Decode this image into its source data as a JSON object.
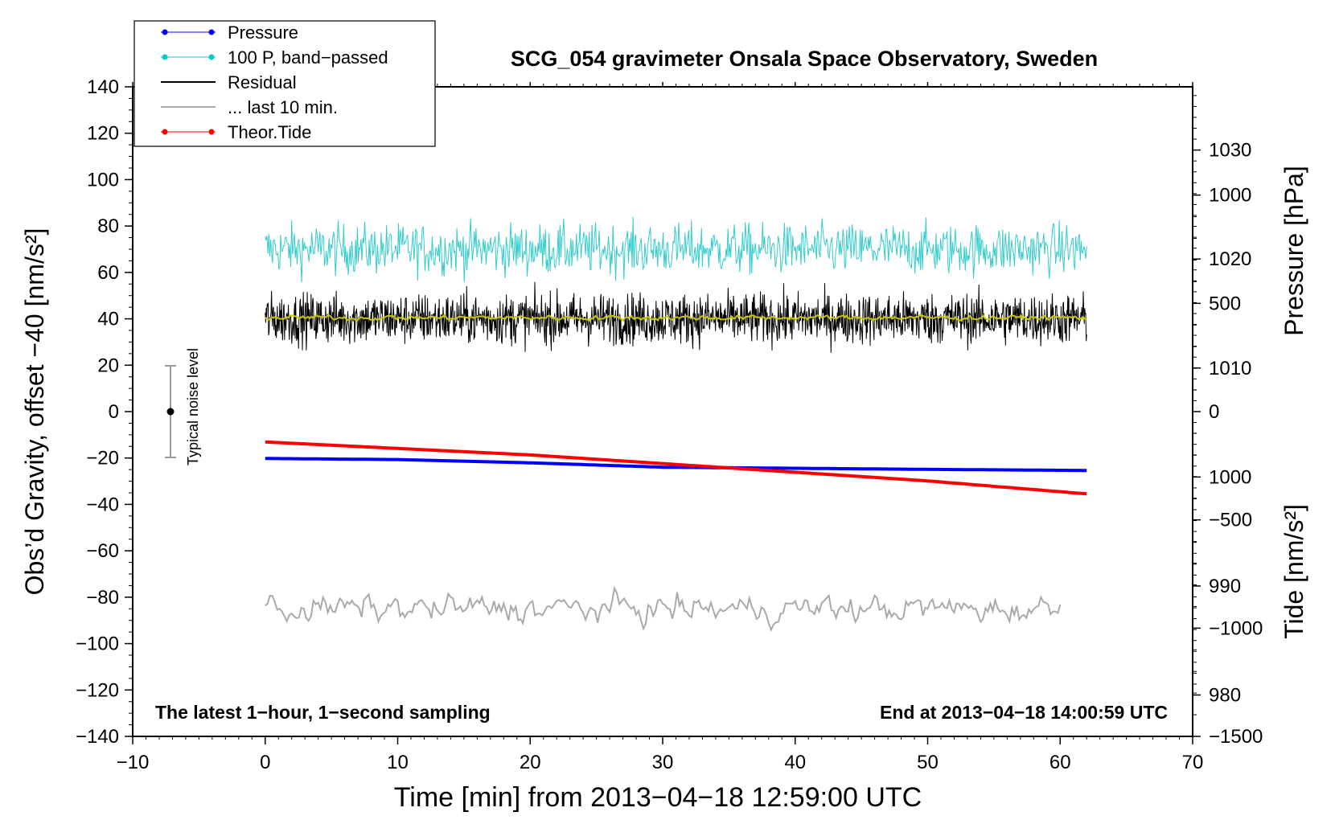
{
  "chart_data": {
    "type": "line",
    "title": "SCG_054 gravimeter Onsala Space Observatory, Sweden",
    "xlabel": "Time [min] from 2013−04−18 12:59:00 UTC",
    "ylabel_left": "Obs’d Gravity, offset −40 [nm/s²]",
    "ylabel_pressure": "Pressure [hPa]",
    "ylabel_tide": "Tide [nm/s²]",
    "xlim": [
      -10,
      70
    ],
    "ylim": [
      -140,
      140
    ],
    "pressure_lim": [
      976.2,
      1035.8
    ],
    "tide_lim": [
      -1500,
      1500
    ],
    "x_ticks": [
      {
        "v": -10,
        "label": "−10"
      },
      {
        "v": 0,
        "label": "0"
      },
      {
        "v": 10,
        "label": "10"
      },
      {
        "v": 20,
        "label": "20"
      },
      {
        "v": 30,
        "label": "30"
      },
      {
        "v": 40,
        "label": "40"
      },
      {
        "v": 50,
        "label": "50"
      },
      {
        "v": 60,
        "label": "60"
      },
      {
        "v": 70,
        "label": "70"
      }
    ],
    "y_ticks": [
      {
        "v": 140,
        "label": "140"
      },
      {
        "v": 120,
        "label": "120"
      },
      {
        "v": 100,
        "label": "100"
      },
      {
        "v": 80,
        "label": "80"
      },
      {
        "v": 60,
        "label": "60"
      },
      {
        "v": 40,
        "label": "40"
      },
      {
        "v": 20,
        "label": "20"
      },
      {
        "v": 0,
        "label": "0"
      },
      {
        "v": -20,
        "label": "−20"
      },
      {
        "v": -40,
        "label": "−40"
      },
      {
        "v": -60,
        "label": "−60"
      },
      {
        "v": -80,
        "label": "−80"
      },
      {
        "v": -100,
        "label": "−100"
      },
      {
        "v": -120,
        "label": "−120"
      },
      {
        "v": -140,
        "label": "−140"
      }
    ],
    "pressure_ticks": [
      {
        "v": 980,
        "label": "980"
      },
      {
        "v": 990,
        "label": "990"
      },
      {
        "v": 1000,
        "label": "1000"
      },
      {
        "v": 1010,
        "label": "1010"
      },
      {
        "v": 1020,
        "label": "1020"
      },
      {
        "v": 1030,
        "label": "1030"
      }
    ],
    "tide_ticks": [
      {
        "v": 1000,
        "label": "1000"
      },
      {
        "v": 500,
        "label": "500"
      },
      {
        "v": 0,
        "label": "0"
      },
      {
        "v": -500,
        "label": "−500"
      },
      {
        "v": -1000,
        "label": "−1000"
      },
      {
        "v": -1500,
        "label": "−1500"
      }
    ],
    "legend_position": "top-left",
    "legend": [
      {
        "label": "Pressure",
        "color": "#0000ff",
        "marker": true,
        "width": 1
      },
      {
        "label": "100 P, band−passed",
        "color": "#00cccc",
        "marker": true,
        "width": 1
      },
      {
        "label": "Residual",
        "color": "#000000",
        "marker": false,
        "width": 2
      },
      {
        "label": "... last 10 min.",
        "color": "#aaaaaa",
        "marker": false,
        "width": 2
      },
      {
        "label": "Theor.Tide",
        "color": "#ff0000",
        "marker": true,
        "width": 1
      }
    ],
    "series": [
      {
        "name": "Pressure",
        "axis": "pressure",
        "color": "#0000ff",
        "x": [
          0,
          10,
          20,
          30,
          40,
          50,
          62
        ],
        "values": [
          1001.7,
          1001.6,
          1001.3,
          1000.9,
          1000.8,
          1000.7,
          1000.6
        ]
      },
      {
        "name": "100 P, band-passed",
        "axis": "left",
        "color": "#33cccc",
        "x": [
          0,
          62
        ],
        "center": 70,
        "noise_amplitude": 10
      },
      {
        "name": "Residual",
        "axis": "left",
        "color": "#000000",
        "x": [
          0,
          62
        ],
        "center": 40,
        "noise_amplitude": 10
      },
      {
        "name": "Residual smoothed",
        "axis": "left",
        "color": "#c8c800",
        "x": [
          0,
          62
        ],
        "center": 40.5,
        "noise_amplitude": 1.2
      },
      {
        "name": "... last 10 min.",
        "axis": "left",
        "color": "#aaaaaa",
        "x": [
          0,
          60
        ],
        "center": -85,
        "noise_amplitude": 7
      },
      {
        "name": "Theor.Tide",
        "axis": "tide",
        "color": "#ff0000",
        "x": [
          0,
          10,
          20,
          30,
          40,
          50,
          62
        ],
        "values": [
          -140,
          -170,
          -200,
          -240,
          -280,
          -320,
          -380
        ]
      }
    ],
    "noise_bar": {
      "x": -7,
      "center": 0,
      "low": -20,
      "high": 20,
      "label": "Typical noise level"
    },
    "annotation_left": "The latest 1−hour, 1−second sampling",
    "annotation_right": "End at 2013−04−18 14:00:59 UTC"
  }
}
